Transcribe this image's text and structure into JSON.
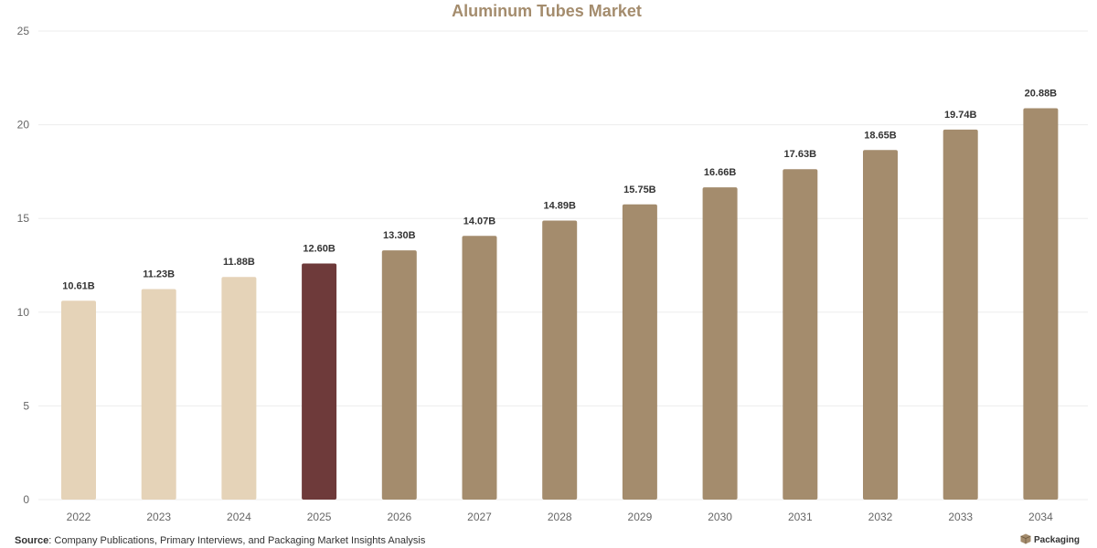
{
  "colors": {
    "history": "#E5D3B8",
    "current": "#6E3A3A",
    "forecast": "#A48C6D",
    "title": "#A48C6D",
    "grid": "#EDEDED"
  },
  "footer": {
    "source_label": "Source",
    "source_text": ": Company Publications, Primary Interviews, and Packaging Market Insights Analysis"
  },
  "brand": {
    "text": "Packaging",
    "icon": "box-icon"
  },
  "chart_data": {
    "type": "bar",
    "title": "Aluminum Tubes Market",
    "xlabel": "",
    "ylabel": "",
    "ylim": [
      0,
      25
    ],
    "yticks": [
      "0",
      "5",
      "10",
      "15",
      "20",
      "25"
    ],
    "grid": true,
    "legend": "none",
    "categories": [
      "2022",
      "2023",
      "2024",
      "2025",
      "2026",
      "2027",
      "2028",
      "2029",
      "2030",
      "2031",
      "2032",
      "2033",
      "2034"
    ],
    "values": [
      10.61,
      11.23,
      11.88,
      12.6,
      13.3,
      14.07,
      14.89,
      15.75,
      16.66,
      17.63,
      18.65,
      19.74,
      20.88
    ],
    "data_labels": [
      "10.61B",
      "11.23B",
      "11.88B",
      "12.60B",
      "13.30B",
      "14.07B",
      "14.89B",
      "15.75B",
      "16.66B",
      "17.63B",
      "18.65B",
      "19.74B",
      "20.88B"
    ],
    "bar_groups": [
      "history",
      "history",
      "history",
      "current",
      "forecast",
      "forecast",
      "forecast",
      "forecast",
      "forecast",
      "forecast",
      "forecast",
      "forecast",
      "forecast"
    ]
  }
}
